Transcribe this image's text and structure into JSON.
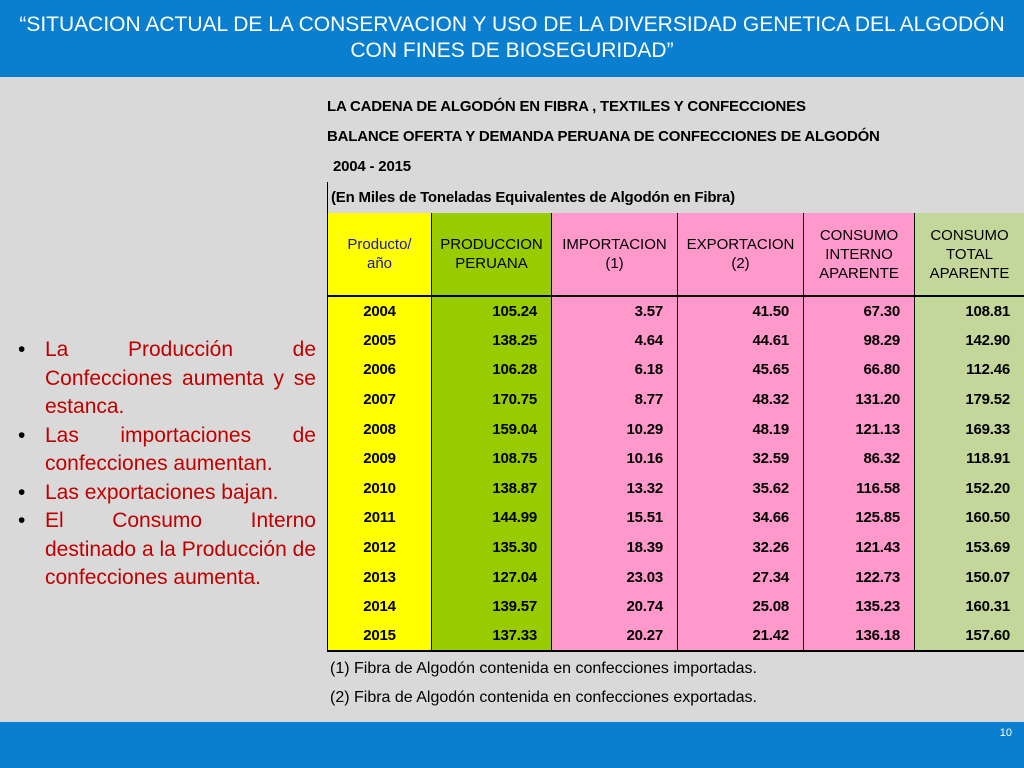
{
  "slide": {
    "title_line1": "“SITUACION ACTUAL DE LA CONSERVACION Y USO DE LA DIVERSIDAD GENETICA DEL ALGODÓN",
    "title_line2": "CON FINES DE BIOSEGURIDAD”",
    "page_number": "10",
    "colors": {
      "banner": "#0a7fd0",
      "background": "#d9d9d9",
      "bullet_text": "#c00000"
    }
  },
  "bullets": [
    "La Producción de Confecciones aumenta y se estanca.",
    "Las importaciones de confecciones aumentan.",
    "Las exportaciones bajan.",
    "El Consumo Interno destinado a la Producción de confecciones aumenta."
  ],
  "table": {
    "title1": "LA CADENA DE ALGODÓN EN FIBRA , TEXTILES Y CONFECCIONES",
    "title2": "BALANCE OFERTA Y DEMANDA PERUANA DE CONFECCIONES DE ALGODÓN",
    "period": "2004 - 2015",
    "units": "(En Miles de Toneladas Equivalentes de Algodón en Fibra)",
    "headers": {
      "year": [
        "Producto/",
        "año"
      ],
      "produccion": [
        "PRODUCCION",
        "PERUANA"
      ],
      "importacion": [
        "IMPORTACION",
        "(1)"
      ],
      "exportacion": [
        "EXPORTACION",
        "(2)"
      ],
      "consumo_interno": [
        "CONSUMO",
        "INTERNO",
        "APARENTE"
      ],
      "consumo_total": [
        "CONSUMO",
        "TOTAL",
        "APARENTE"
      ]
    },
    "rows": [
      [
        "2004",
        "105.24",
        "3.57",
        "41.50",
        "67.30",
        "108.81"
      ],
      [
        "2005",
        "138.25",
        "4.64",
        "44.61",
        "98.29",
        "142.90"
      ],
      [
        "2006",
        "106.28",
        "6.18",
        "45.65",
        "66.80",
        "112.46"
      ],
      [
        "2007",
        "170.75",
        "8.77",
        "48.32",
        "131.20",
        "179.52"
      ],
      [
        "2008",
        "159.04",
        "10.29",
        "48.19",
        "121.13",
        "169.33"
      ],
      [
        "2009",
        "108.75",
        "10.16",
        "32.59",
        "86.32",
        "118.91"
      ],
      [
        "2010",
        "138.87",
        "13.32",
        "35.62",
        "116.58",
        "152.20"
      ],
      [
        "2011",
        "144.99",
        "15.51",
        "34.66",
        "125.85",
        "160.50"
      ],
      [
        "2012",
        "135.30",
        "18.39",
        "32.26",
        "121.43",
        "153.69"
      ],
      [
        "2013",
        "127.04",
        "23.03",
        "27.34",
        "122.73",
        "150.07"
      ],
      [
        "2014",
        "139.57",
        "20.74",
        "25.08",
        "135.23",
        "160.31"
      ],
      [
        "2015",
        "137.33",
        "20.27",
        "21.42",
        "136.18",
        "157.60"
      ]
    ],
    "notes": [
      "(1) Fibra de Algodón contenida en confecciones importadas.",
      "(2) Fibra de Algodón contenida en confecciones exportadas."
    ],
    "column_colors": [
      "#ffff00",
      "#99cc00",
      "#ff99cc",
      "#ff99cc",
      "#ff99cc",
      "#c4d79b"
    ]
  }
}
